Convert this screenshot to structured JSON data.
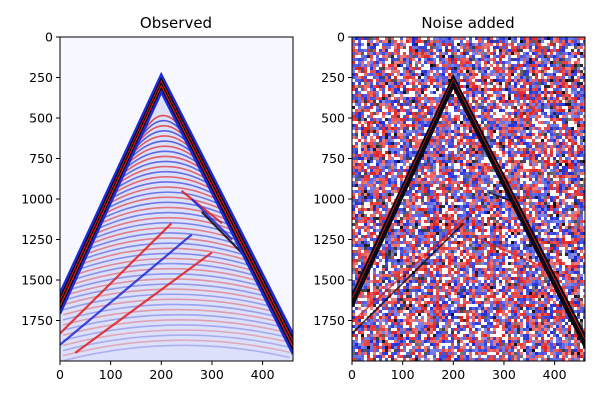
{
  "chart_data": [
    {
      "type": "heatmap",
      "title": "Observed",
      "xlabel": "",
      "ylabel": "",
      "xlim": [
        0,
        460
      ],
      "ylim": [
        0,
        2000
      ],
      "y_inverted": true,
      "x_ticks": [
        0,
        100,
        200,
        300,
        400
      ],
      "y_ticks": [
        0,
        250,
        500,
        750,
        1000,
        1250,
        1500,
        1750
      ],
      "colormap": "seismic (blue-white-red)",
      "background": "#f7f7ff",
      "features": {
        "apex": [
          200,
          250
        ],
        "left_arm_end": [
          0,
          1600
        ],
        "right_arm_end": [
          460,
          1850
        ],
        "noise": "none"
      }
    },
    {
      "type": "heatmap",
      "title": "Noise added",
      "xlabel": "",
      "ylabel": "",
      "xlim": [
        0,
        460
      ],
      "ylim": [
        0,
        2000
      ],
      "y_inverted": true,
      "x_ticks": [
        0,
        100,
        200,
        300,
        400
      ],
      "y_ticks": [
        0,
        250,
        500,
        750,
        1000,
        1250,
        1500,
        1750
      ],
      "colormap": "seismic (blue-white-red)",
      "background": "random noise",
      "features": {
        "apex": [
          200,
          250
        ],
        "left_arm_end": [
          0,
          1600
        ],
        "right_arm_end": [
          460,
          1850
        ],
        "noise": "strong random"
      }
    }
  ],
  "colors": {
    "blue": "#1d2bd6",
    "red": "#e01f1f",
    "dark": "#0a0a14",
    "white": "#ffffff"
  }
}
